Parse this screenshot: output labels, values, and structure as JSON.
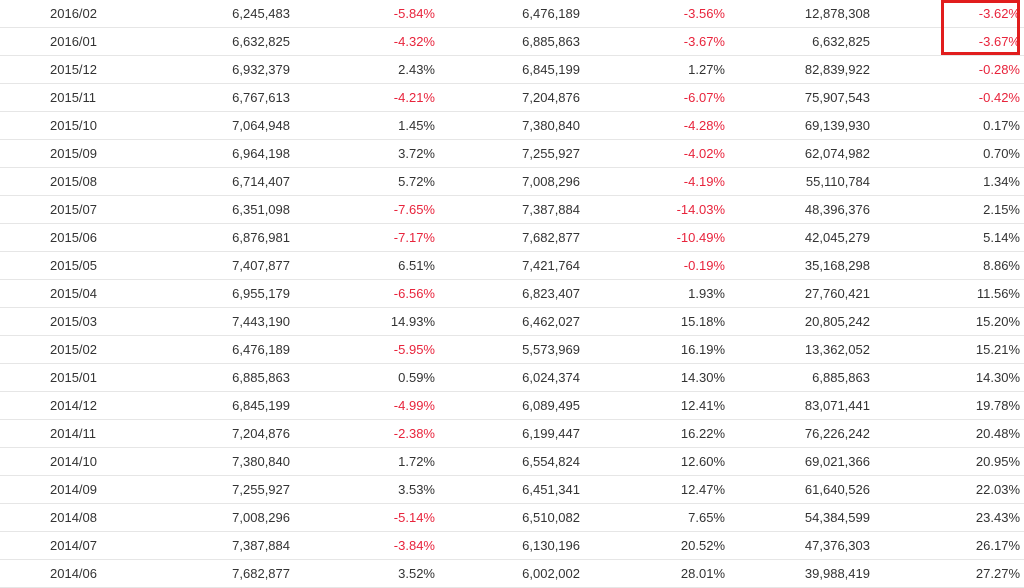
{
  "colors": {
    "negative": "#e8243c",
    "positive": "#333333",
    "highlight": "#e11d1d",
    "divider": "#e6e6e6"
  },
  "highlight": {
    "rows": [
      "2016/02",
      "2016/01"
    ],
    "column": "c6"
  },
  "rows": [
    {
      "month": "2016/02",
      "c1": "6,245,483",
      "c2": "-5.84%",
      "c3": "6,476,189",
      "c4": "-3.56%",
      "c5": "12,878,308",
      "c6": "-3.62%"
    },
    {
      "month": "2016/01",
      "c1": "6,632,825",
      "c2": "-4.32%",
      "c3": "6,885,863",
      "c4": "-3.67%",
      "c5": "6,632,825",
      "c6": "-3.67%"
    },
    {
      "month": "2015/12",
      "c1": "6,932,379",
      "c2": "2.43%",
      "c3": "6,845,199",
      "c4": "1.27%",
      "c5": "82,839,922",
      "c6": "-0.28%"
    },
    {
      "month": "2015/11",
      "c1": "6,767,613",
      "c2": "-4.21%",
      "c3": "7,204,876",
      "c4": "-6.07%",
      "c5": "75,907,543",
      "c6": "-0.42%"
    },
    {
      "month": "2015/10",
      "c1": "7,064,948",
      "c2": "1.45%",
      "c3": "7,380,840",
      "c4": "-4.28%",
      "c5": "69,139,930",
      "c6": "0.17%"
    },
    {
      "month": "2015/09",
      "c1": "6,964,198",
      "c2": "3.72%",
      "c3": "7,255,927",
      "c4": "-4.02%",
      "c5": "62,074,982",
      "c6": "0.70%"
    },
    {
      "month": "2015/08",
      "c1": "6,714,407",
      "c2": "5.72%",
      "c3": "7,008,296",
      "c4": "-4.19%",
      "c5": "55,110,784",
      "c6": "1.34%"
    },
    {
      "month": "2015/07",
      "c1": "6,351,098",
      "c2": "-7.65%",
      "c3": "7,387,884",
      "c4": "-14.03%",
      "c5": "48,396,376",
      "c6": "2.15%"
    },
    {
      "month": "2015/06",
      "c1": "6,876,981",
      "c2": "-7.17%",
      "c3": "7,682,877",
      "c4": "-10.49%",
      "c5": "42,045,279",
      "c6": "5.14%"
    },
    {
      "month": "2015/05",
      "c1": "7,407,877",
      "c2": "6.51%",
      "c3": "7,421,764",
      "c4": "-0.19%",
      "c5": "35,168,298",
      "c6": "8.86%"
    },
    {
      "month": "2015/04",
      "c1": "6,955,179",
      "c2": "-6.56%",
      "c3": "6,823,407",
      "c4": "1.93%",
      "c5": "27,760,421",
      "c6": "11.56%"
    },
    {
      "month": "2015/03",
      "c1": "7,443,190",
      "c2": "14.93%",
      "c3": "6,462,027",
      "c4": "15.18%",
      "c5": "20,805,242",
      "c6": "15.20%"
    },
    {
      "month": "2015/02",
      "c1": "6,476,189",
      "c2": "-5.95%",
      "c3": "5,573,969",
      "c4": "16.19%",
      "c5": "13,362,052",
      "c6": "15.21%"
    },
    {
      "month": "2015/01",
      "c1": "6,885,863",
      "c2": "0.59%",
      "c3": "6,024,374",
      "c4": "14.30%",
      "c5": "6,885,863",
      "c6": "14.30%"
    },
    {
      "month": "2014/12",
      "c1": "6,845,199",
      "c2": "-4.99%",
      "c3": "6,089,495",
      "c4": "12.41%",
      "c5": "83,071,441",
      "c6": "19.78%"
    },
    {
      "month": "2014/11",
      "c1": "7,204,876",
      "c2": "-2.38%",
      "c3": "6,199,447",
      "c4": "16.22%",
      "c5": "76,226,242",
      "c6": "20.48%"
    },
    {
      "month": "2014/10",
      "c1": "7,380,840",
      "c2": "1.72%",
      "c3": "6,554,824",
      "c4": "12.60%",
      "c5": "69,021,366",
      "c6": "20.95%"
    },
    {
      "month": "2014/09",
      "c1": "7,255,927",
      "c2": "3.53%",
      "c3": "6,451,341",
      "c4": "12.47%",
      "c5": "61,640,526",
      "c6": "22.03%"
    },
    {
      "month": "2014/08",
      "c1": "7,008,296",
      "c2": "-5.14%",
      "c3": "6,510,082",
      "c4": "7.65%",
      "c5": "54,384,599",
      "c6": "23.43%"
    },
    {
      "month": "2014/07",
      "c1": "7,387,884",
      "c2": "-3.84%",
      "c3": "6,130,196",
      "c4": "20.52%",
      "c5": "47,376,303",
      "c6": "26.17%"
    },
    {
      "month": "2014/06",
      "c1": "7,682,877",
      "c2": "3.52%",
      "c3": "6,002,002",
      "c4": "28.01%",
      "c5": "39,988,419",
      "c6": "27.27%"
    }
  ]
}
